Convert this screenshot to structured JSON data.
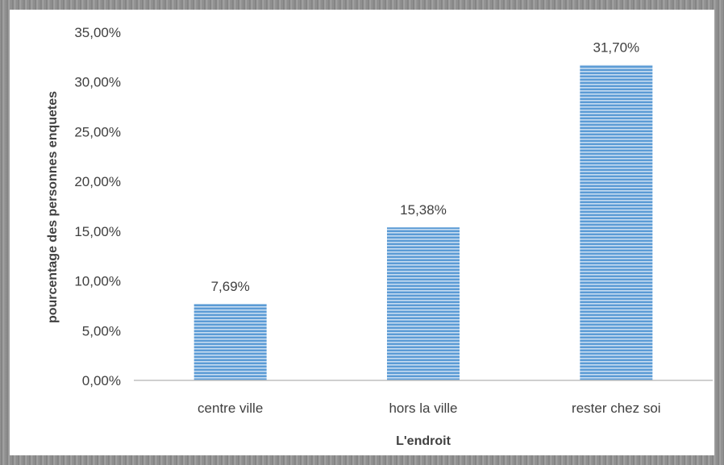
{
  "chart_data": {
    "type": "bar",
    "categories": [
      "centre ville",
      "hors la ville",
      "rester chez soi"
    ],
    "values": [
      7.69,
      15.38,
      31.7
    ],
    "data_labels": [
      "7,69%",
      "15,38%",
      "31,70%"
    ],
    "xlabel": "L'endroit",
    "ylabel": "pourcentage des personnes enquetes",
    "ylim": [
      0,
      35
    ],
    "y_ticks": [
      0,
      5,
      10,
      15,
      20,
      25,
      30,
      35
    ],
    "y_tick_labels": [
      "0,00%",
      "5,00%",
      "10,00%",
      "15,00%",
      "20,00%",
      "25,00%",
      "30,00%",
      "35,00%"
    ],
    "grid": false,
    "legend": "none",
    "bar_color": "#5b9bd5"
  }
}
